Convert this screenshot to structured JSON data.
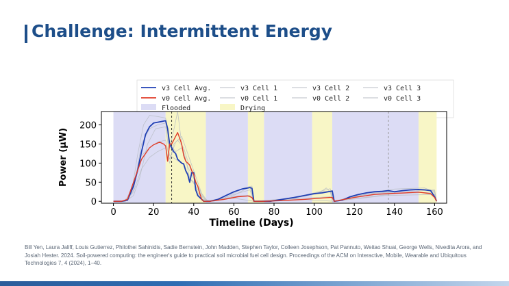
{
  "slide": {
    "title": "Challenge: Intermittent Energy",
    "citation": "Bill Yen, Laura Jaliff, Louis Gutierrez, Philothei Sahinidis, Sadie Bernstein, John Madden, Stephen Taylor, Colleen Josephson, Pat Pannuto, Weitao Shuai, George Wells, Nivedita Arora, and Josiah Hester. 2024. Soil-powered computing: the engineer's guide to practical soil microbial fuel cell design. Proceedings of the ACM on Interactive, Mobile, Wearable and Ubiquitous Technologies 7, 4 (2024), 1–40.",
    "accent_color": "#1d4e89"
  },
  "chart_data": {
    "type": "line",
    "xlabel": "Timeline (Days)",
    "ylabel": "Power (µW)",
    "xlim": [
      -6,
      166
    ],
    "ylim": [
      -5,
      235
    ],
    "xticks": [
      0,
      20,
      40,
      60,
      80,
      100,
      120,
      140,
      160
    ],
    "yticks": [
      0,
      50,
      100,
      150,
      200
    ],
    "grid": false,
    "legend_position": "top",
    "regions": {
      "flooded": [
        [
          0,
          26
        ],
        [
          46,
          67
        ],
        [
          75,
          99
        ],
        [
          109,
          152
        ]
      ],
      "drying": [
        [
          26,
          46
        ],
        [
          67,
          75
        ],
        [
          99,
          109
        ],
        [
          152,
          161
        ]
      ],
      "flooded_color": "#dcdcf5",
      "drying_color": "#f8f6c6"
    },
    "vertical_lines": [
      {
        "x": 29,
        "style": "dashed",
        "color": "#333333"
      },
      {
        "x": 137,
        "style": "dashed",
        "color": "#999999"
      }
    ],
    "legend": [
      {
        "label": "v3 Cell Avg.",
        "color": "#1f3fb4",
        "kind": "line"
      },
      {
        "label": "v3 Cell 1",
        "color": "#b8bdc4",
        "kind": "line"
      },
      {
        "label": "v3 Cell 2",
        "color": "#b8bdc4",
        "kind": "line"
      },
      {
        "label": "v3 Cell 3",
        "color": "#b8bdc4",
        "kind": "line"
      },
      {
        "label": "v0 Cell Avg.",
        "color": "#e03c28",
        "kind": "line"
      },
      {
        "label": "v0 Cell 1",
        "color": "#b8bdc4",
        "kind": "line"
      },
      {
        "label": "v0 Cell 2",
        "color": "#b8bdc4",
        "kind": "line"
      },
      {
        "label": "v0 Cell 3",
        "color": "#b8bdc4",
        "kind": "line"
      },
      {
        "label": "Flooded",
        "color": "#dcdcf5",
        "kind": "patch"
      },
      {
        "label": "Drying",
        "color": "#f8f6c6",
        "kind": "patch"
      }
    ],
    "series": [
      {
        "name": "v3 Cell Avg.",
        "color": "#1f3fb4",
        "width": 1.8,
        "x": [
          0,
          4,
          7,
          10,
          12,
          14,
          16,
          18,
          20,
          23,
          26,
          27,
          28,
          29,
          30,
          31,
          32,
          33,
          34,
          35,
          36,
          37,
          38,
          39,
          40,
          41,
          42,
          45,
          48,
          52,
          56,
          60,
          64,
          67,
          68,
          69,
          70,
          74,
          78,
          84,
          90,
          96,
          100,
          104,
          107,
          108,
          109,
          110,
          114,
          118,
          122,
          126,
          130,
          134,
          137,
          140,
          144,
          148,
          152,
          155,
          158,
          160,
          161
        ],
        "y": [
          0,
          0,
          3,
          40,
          80,
          130,
          175,
          195,
          205,
          208,
          211,
          190,
          150,
          140,
          130,
          125,
          110,
          105,
          100,
          98,
          80,
          70,
          50,
          75,
          75,
          30,
          15,
          0,
          0,
          5,
          15,
          25,
          32,
          35,
          36,
          34,
          0,
          0,
          0,
          5,
          10,
          16,
          20,
          22,
          25,
          26,
          27,
          0,
          3,
          12,
          18,
          22,
          25,
          26,
          28,
          25,
          28,
          30,
          31,
          30,
          28,
          12,
          0
        ]
      },
      {
        "name": "v0 Cell Avg.",
        "color": "#e03c28",
        "width": 1.4,
        "x": [
          0,
          4,
          7,
          10,
          14,
          18,
          20,
          23,
          25,
          26,
          27,
          28,
          29,
          30,
          31,
          32,
          33,
          34,
          35,
          36,
          38,
          39,
          40,
          41,
          42,
          43,
          44,
          45,
          48,
          55,
          62,
          67,
          69,
          70,
          75,
          85,
          95,
          100,
          105,
          108,
          109,
          110,
          120,
          130,
          137,
          145,
          152,
          158,
          160,
          161
        ],
        "y": [
          0,
          0,
          5,
          50,
          110,
          140,
          148,
          155,
          150,
          145,
          105,
          150,
          150,
          160,
          170,
          180,
          165,
          150,
          120,
          105,
          95,
          80,
          70,
          50,
          40,
          20,
          5,
          0,
          0,
          5,
          12,
          14,
          10,
          0,
          0,
          2,
          5,
          7,
          9,
          10,
          10,
          0,
          10,
          18,
          20,
          22,
          24,
          20,
          10,
          0
        ]
      },
      {
        "name": "",
        "color": "#b8bdc4",
        "width": 0.8,
        "x": [
          0,
          5,
          9,
          12,
          15,
          18,
          22,
          26,
          28,
          31,
          34,
          36,
          38,
          40,
          43,
          46,
          55,
          65,
          69,
          70,
          80,
          95,
          104,
          108,
          109,
          110,
          125,
          140,
          155,
          160,
          161
        ],
        "y": [
          0,
          0,
          20,
          120,
          200,
          225,
          222,
          218,
          150,
          130,
          140,
          110,
          60,
          50,
          10,
          0,
          8,
          35,
          40,
          0,
          2,
          15,
          25,
          27,
          0,
          0,
          20,
          32,
          35,
          25,
          0
        ]
      },
      {
        "name": "",
        "color": "#b8bdc4",
        "width": 0.8,
        "x": [
          0,
          6,
          10,
          14,
          18,
          22,
          26,
          28,
          30,
          32,
          34,
          37,
          40,
          44,
          47,
          58,
          68,
          70,
          85,
          100,
          108,
          110,
          130,
          150,
          160,
          161
        ],
        "y": [
          0,
          0,
          30,
          150,
          190,
          200,
          205,
          140,
          185,
          235,
          150,
          90,
          60,
          15,
          0,
          10,
          38,
          0,
          4,
          22,
          33,
          0,
          22,
          30,
          28,
          0
        ]
      },
      {
        "name": "",
        "color": "#b8bdc4",
        "width": 0.8,
        "x": [
          0,
          6,
          10,
          13,
          17,
          21,
          26,
          28,
          31,
          35,
          38,
          41,
          45,
          50,
          60,
          68,
          70,
          90,
          102,
          106,
          108,
          110,
          125,
          145,
          160,
          161
        ],
        "y": [
          0,
          0,
          15,
          60,
          150,
          190,
          195,
          120,
          110,
          95,
          60,
          40,
          5,
          0,
          18,
          30,
          0,
          8,
          20,
          35,
          25,
          0,
          18,
          26,
          30,
          0
        ]
      },
      {
        "name": "",
        "color": "#b8bdc4",
        "width": 0.8,
        "x": [
          0,
          6,
          10,
          14,
          18,
          22,
          26,
          28,
          30,
          32,
          35,
          38,
          42,
          46,
          60,
          70,
          90,
          110,
          135,
          160,
          161
        ],
        "y": [
          0,
          0,
          25,
          85,
          115,
          130,
          140,
          100,
          150,
          160,
          140,
          90,
          40,
          0,
          8,
          0,
          6,
          0,
          15,
          18,
          0
        ]
      },
      {
        "name": "",
        "color": "#b8bdc4",
        "width": 0.8,
        "x": [
          0,
          6,
          10,
          14,
          18,
          22,
          26,
          28,
          31,
          34,
          37,
          40,
          44,
          47,
          62,
          68,
          70,
          95,
          108,
          110,
          140,
          160,
          161
        ],
        "y": [
          0,
          0,
          45,
          120,
          140,
          155,
          160,
          110,
          155,
          170,
          125,
          80,
          20,
          0,
          14,
          16,
          0,
          8,
          12,
          0,
          20,
          24,
          0
        ]
      }
    ]
  }
}
